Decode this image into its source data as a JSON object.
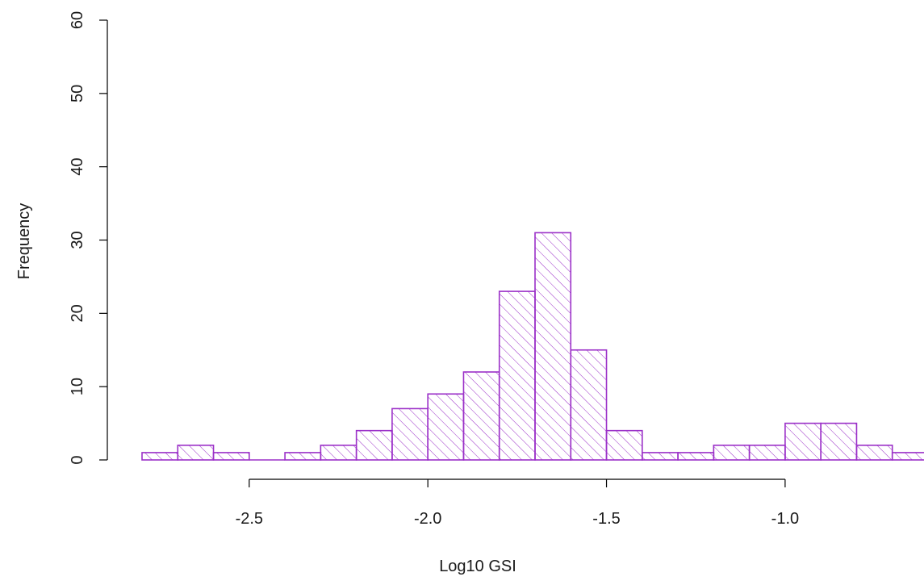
{
  "chart_data": {
    "type": "bar",
    "subtype": "histogram",
    "title": "",
    "xlabel": "Log10 GSI",
    "ylabel": "Frequency",
    "bin_width": 0.1,
    "bins": [
      {
        "start": -2.8,
        "end": -2.7,
        "count": 1
      },
      {
        "start": -2.7,
        "end": -2.6,
        "count": 2
      },
      {
        "start": -2.6,
        "end": -2.5,
        "count": 1
      },
      {
        "start": -2.5,
        "end": -2.4,
        "count": 0
      },
      {
        "start": -2.4,
        "end": -2.3,
        "count": 1
      },
      {
        "start": -2.3,
        "end": -2.2,
        "count": 2
      },
      {
        "start": -2.2,
        "end": -2.1,
        "count": 4
      },
      {
        "start": -2.1,
        "end": -2.0,
        "count": 7
      },
      {
        "start": -2.0,
        "end": -1.9,
        "count": 9
      },
      {
        "start": -1.9,
        "end": -1.8,
        "count": 12
      },
      {
        "start": -1.8,
        "end": -1.7,
        "count": 23
      },
      {
        "start": -1.7,
        "end": -1.6,
        "count": 31
      },
      {
        "start": -1.6,
        "end": -1.5,
        "count": 15
      },
      {
        "start": -1.5,
        "end": -1.4,
        "count": 4
      },
      {
        "start": -1.4,
        "end": -1.3,
        "count": 1
      },
      {
        "start": -1.3,
        "end": -1.2,
        "count": 1
      },
      {
        "start": -1.2,
        "end": -1.1,
        "count": 2
      },
      {
        "start": -1.1,
        "end": -1.0,
        "count": 2
      },
      {
        "start": -1.0,
        "end": -0.9,
        "count": 5
      },
      {
        "start": -0.9,
        "end": -0.8,
        "count": 5
      },
      {
        "start": -0.8,
        "end": -0.7,
        "count": 2
      },
      {
        "start": -0.7,
        "end": -0.6,
        "count": 1
      }
    ],
    "xlim": [
      -2.8,
      -0.6
    ],
    "ylim": [
      0,
      60
    ],
    "x_ticks": [
      {
        "value": -2.5,
        "label": "-2.5"
      },
      {
        "value": -2.0,
        "label": "-2.0"
      },
      {
        "value": -1.5,
        "label": "-1.5"
      },
      {
        "value": -1.0,
        "label": "-1.0"
      }
    ],
    "y_ticks": [
      {
        "value": 0,
        "label": "0"
      },
      {
        "value": 10,
        "label": "10"
      },
      {
        "value": 20,
        "label": "20"
      },
      {
        "value": 30,
        "label": "30"
      },
      {
        "value": 40,
        "label": "40"
      },
      {
        "value": 50,
        "label": "50"
      },
      {
        "value": 60,
        "label": "60"
      }
    ],
    "grid": false,
    "legend": "none",
    "bar_fill": "hatched",
    "colors": {
      "bar_stroke": "#9b30c8",
      "hatch": "#9b30c8",
      "axis": "#000000",
      "text": "#1a1a1a",
      "background": "#ffffff"
    }
  }
}
